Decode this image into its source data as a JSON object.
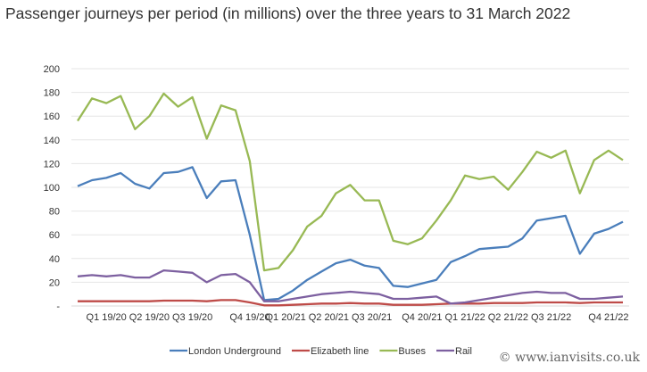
{
  "chart_data": {
    "type": "line",
    "title": "Passenger journeys per period (in millions) over the three years to 31 March 2022",
    "ylim": [
      0,
      200
    ],
    "yticks": [
      0,
      20,
      40,
      60,
      80,
      100,
      120,
      140,
      160,
      180,
      200
    ],
    "ytick_labels": [
      "-",
      "20",
      "40",
      "60",
      "80",
      "100",
      "120",
      "140",
      "160",
      "180",
      "200"
    ],
    "grid": true,
    "legend_placement": "bottom",
    "xtick_labels": [
      {
        "label": "Q1 19/20",
        "period": 2
      },
      {
        "label": "Q2 19/20",
        "period": 5
      },
      {
        "label": "Q3 19/20",
        "period": 8
      },
      {
        "label": "Q4 19/20",
        "period": 12
      },
      {
        "label": "Q1 20/21",
        "period": 14.5
      },
      {
        "label": "Q2 20/21",
        "period": 17.5
      },
      {
        "label": "Q3 20/21",
        "period": 20.5
      },
      {
        "label": "Q4 20/21",
        "period": 24
      },
      {
        "label": "Q1 21/22",
        "period": 27
      },
      {
        "label": "Q2 21/22",
        "period": 30
      },
      {
        "label": "Q3 21/22",
        "period": 33
      },
      {
        "label": "Q4 21/22",
        "period": 37
      }
    ],
    "series": [
      {
        "name": "London Underground",
        "color": "#4a7ebb",
        "values": [
          101,
          106,
          108,
          112,
          103,
          99,
          112,
          113,
          117,
          91,
          105,
          106,
          60,
          5,
          6,
          13,
          22,
          29,
          36,
          39,
          34,
          32,
          17,
          16,
          19,
          22,
          37,
          42,
          48,
          49,
          50,
          57,
          72,
          74,
          76,
          44,
          61,
          65,
          71
        ]
      },
      {
        "name": "Elizabeth line",
        "color": "#be4b48",
        "values": [
          4,
          4,
          4,
          4,
          4,
          4,
          4.5,
          4.5,
          4.5,
          4,
          5,
          5,
          3,
          0.5,
          0.5,
          1,
          1.5,
          2,
          2,
          2.5,
          2,
          2,
          1,
          1,
          1,
          1.5,
          2,
          2,
          2,
          2.5,
          2.5,
          2.5,
          3,
          3,
          3,
          2.5,
          3,
          3,
          3
        ]
      },
      {
        "name": "Buses",
        "color": "#98b954",
        "values": [
          156,
          175,
          171,
          177,
          149,
          160,
          179,
          168,
          176,
          141,
          169,
          165,
          122,
          30,
          32,
          47,
          67,
          76,
          95,
          102,
          89,
          89,
          55,
          52,
          57,
          72,
          89,
          110,
          107,
          109,
          98,
          113,
          130,
          125,
          131,
          95,
          123,
          131,
          123
        ]
      },
      {
        "name": "Rail",
        "color": "#7d60a0",
        "values": [
          25,
          26,
          25,
          26,
          24,
          24,
          30,
          29,
          28,
          20,
          26,
          27,
          20,
          4,
          4,
          6,
          8,
          10,
          11,
          12,
          11,
          10,
          6,
          6,
          7,
          8,
          2,
          3,
          5,
          7,
          9,
          11,
          12,
          11,
          11,
          6,
          6,
          7,
          8
        ]
      }
    ]
  },
  "watermark": "© www.ianvisits.co.uk"
}
